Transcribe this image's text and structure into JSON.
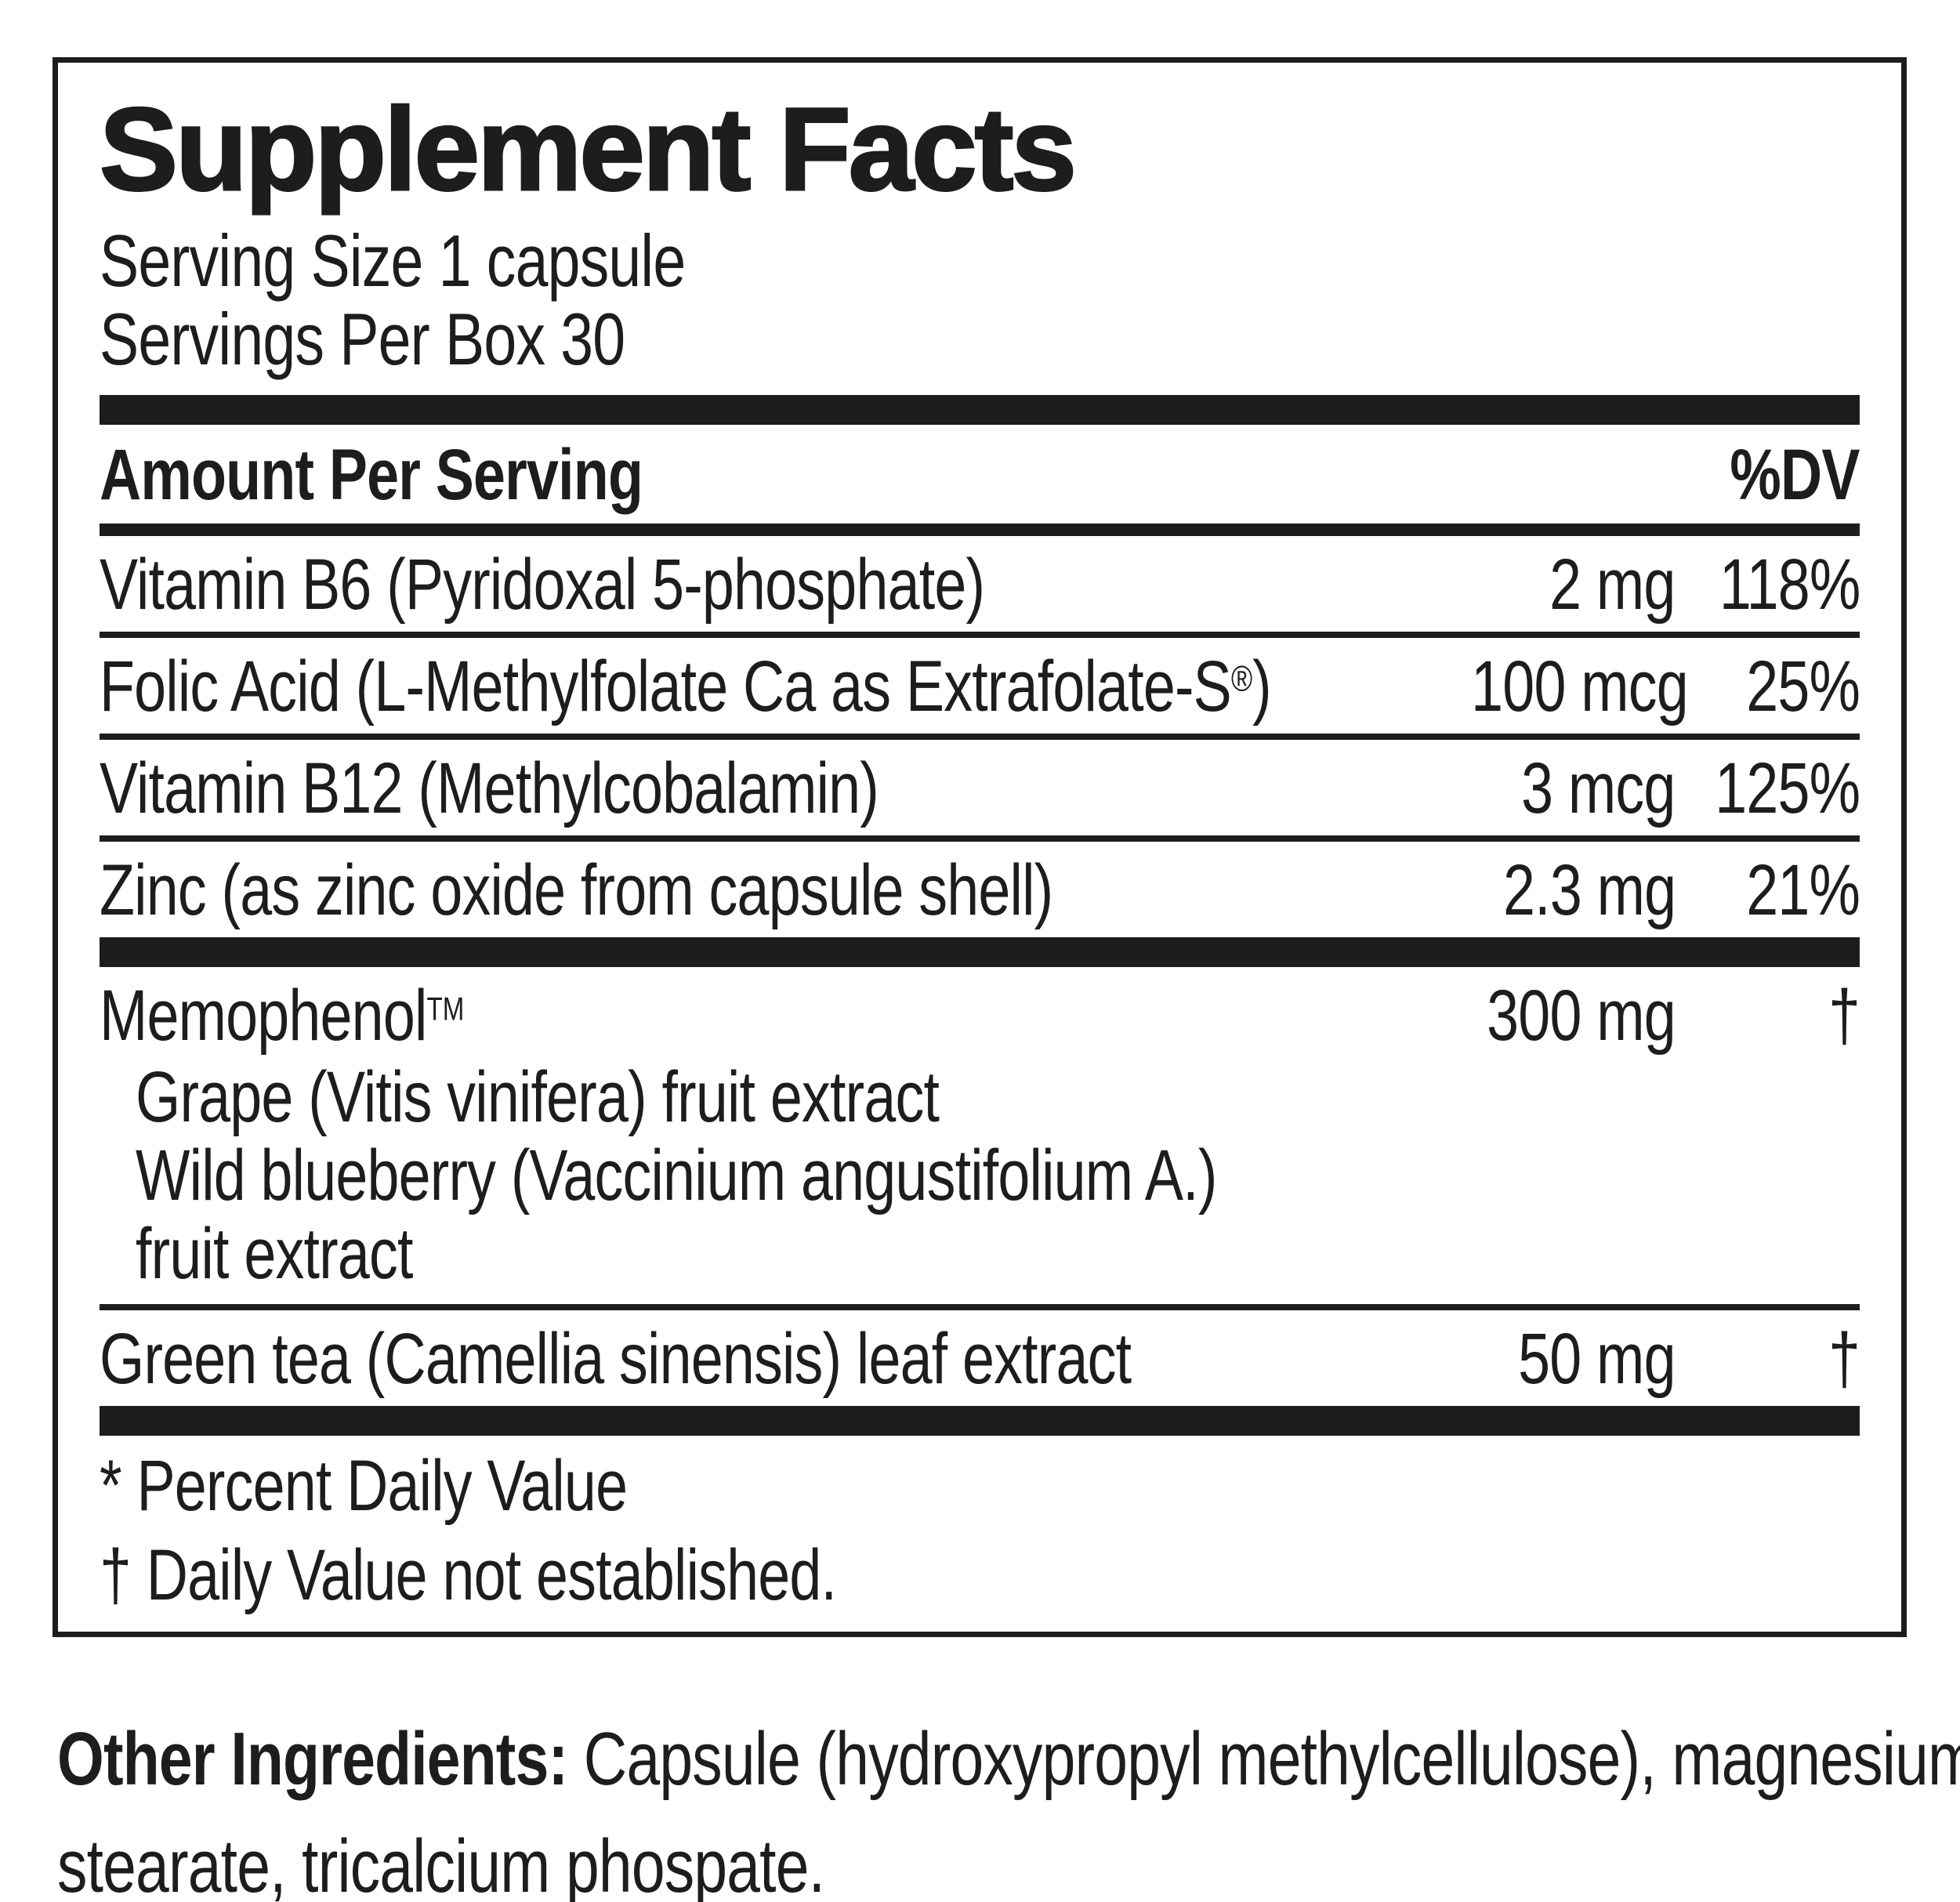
{
  "title": "Supplement Facts",
  "serving": {
    "size_line": "Serving Size 1 capsule",
    "per_box_line": "Servings Per Box 30"
  },
  "table": {
    "header": {
      "left": "Amount Per Serving",
      "right": "%DV"
    },
    "rows": [
      {
        "name": "Vitamin B6 (Pyridoxal 5-phosphate)",
        "amount": "2 mg",
        "dv": "118%"
      },
      {
        "name": "Folic Acid (L-Methylfolate Ca as Extrafolate-S",
        "sup": "®",
        "name_end": ")",
        "amount": "100 mcg",
        "dv": "25%"
      },
      {
        "name": "Vitamin B12 (Methylcobalamin)",
        "amount": "3 mcg",
        "dv": "125%"
      },
      {
        "name": "Zinc (as zinc oxide from capsule shell)",
        "amount": "2.3 mg",
        "dv": "21%"
      },
      {
        "name": "Memophenol",
        "sup": "TM",
        "amount": "300 mg",
        "dv": "†",
        "sublines": [
          "Grape (Vitis vinifera) fruit extract",
          "Wild blueberry (Vaccinium angustifolium A.)",
          "fruit extract"
        ]
      },
      {
        "name": "Green tea (Camellia sinensis) leaf extract",
        "amount": "50 mg",
        "dv": "†"
      }
    ]
  },
  "footnotes": [
    "* Percent Daily Value",
    "† Daily Value not established."
  ],
  "other_ingredients": {
    "label": "Other Ingredients:",
    "line1": " Capsule (hydroxypropyl methylcellulose), magnesium",
    "line2": "stearate, tricalcium phospate."
  },
  "colors": {
    "ink": "#1d1d1b",
    "background": "#ffffff"
  }
}
